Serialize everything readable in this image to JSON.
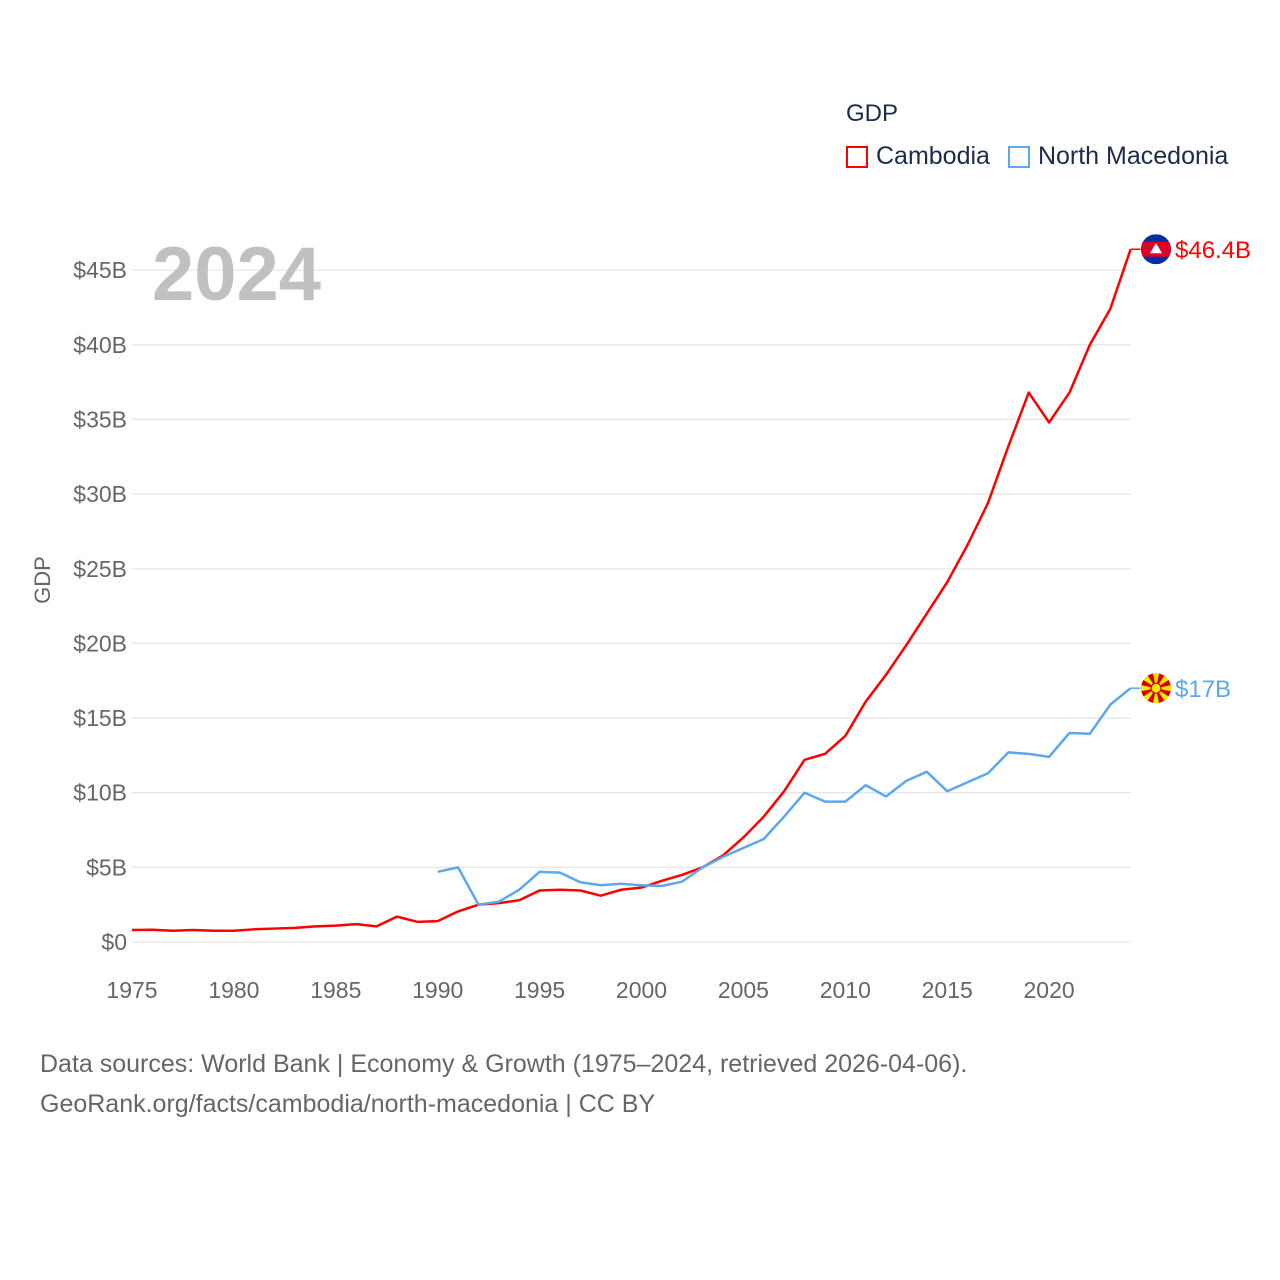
{
  "chart_data": {
    "type": "line",
    "title": "",
    "legend_title": "GDP",
    "legend_position": "top-right",
    "ylabel": "GDP",
    "xlabel": "",
    "xlim": [
      1975,
      2024
    ],
    "ylim": [
      0,
      47
    ],
    "x_ticks": [
      1975,
      1980,
      1985,
      1990,
      1995,
      2000,
      2005,
      2010,
      2015,
      2020
    ],
    "y_ticks": [
      0,
      5,
      10,
      15,
      20,
      25,
      30,
      35,
      40,
      45
    ],
    "y_tick_labels": [
      "$0",
      "$5B",
      "$10B",
      "$15B",
      "$20B",
      "$25B",
      "$30B",
      "$35B",
      "$40B",
      "$45B"
    ],
    "grid": true,
    "year_watermark": "2024",
    "series": [
      {
        "name": "Cambodia",
        "color": "#ff0000",
        "end_label": "$46.4B",
        "flag": "cambodia-flag",
        "x": [
          1975,
          1976,
          1977,
          1978,
          1979,
          1980,
          1981,
          1982,
          1983,
          1984,
          1985,
          1986,
          1987,
          1988,
          1989,
          1990,
          1991,
          1992,
          1993,
          1994,
          1995,
          1996,
          1997,
          1998,
          1999,
          2000,
          2001,
          2002,
          2003,
          2004,
          2005,
          2006,
          2007,
          2008,
          2009,
          2010,
          2011,
          2012,
          2013,
          2014,
          2015,
          2016,
          2017,
          2018,
          2019,
          2020,
          2021,
          2022,
          2023,
          2024
        ],
        "values": [
          0.8,
          0.82,
          0.75,
          0.8,
          0.75,
          0.75,
          0.85,
          0.9,
          0.95,
          1.05,
          1.1,
          1.2,
          1.05,
          1.7,
          1.35,
          1.4,
          2.05,
          2.5,
          2.6,
          2.8,
          3.45,
          3.5,
          3.45,
          3.1,
          3.5,
          3.65,
          4.1,
          4.5,
          5.0,
          5.8,
          7.0,
          8.4,
          10.1,
          12.2,
          12.6,
          13.8,
          16.1,
          17.9,
          19.9,
          22.0,
          24.1,
          26.6,
          29.4,
          33.2,
          36.8,
          34.8,
          36.8,
          40.0,
          42.4,
          46.4
        ]
      },
      {
        "name": "North Macedonia",
        "color": "#5ca8ee",
        "end_label": "$17B",
        "flag": "north-macedonia-flag",
        "x": [
          1990,
          1991,
          1992,
          1993,
          1994,
          1995,
          1996,
          1997,
          1998,
          1999,
          2000,
          2001,
          2002,
          2003,
          2004,
          2005,
          2006,
          2007,
          2008,
          2009,
          2010,
          2011,
          2012,
          2013,
          2014,
          2015,
          2016,
          2017,
          2018,
          2019,
          2020,
          2021,
          2022,
          2023,
          2024
        ],
        "values": [
          4.7,
          5.0,
          2.5,
          2.7,
          3.5,
          4.7,
          4.65,
          4.0,
          3.8,
          3.9,
          3.8,
          3.75,
          4.05,
          5.0,
          5.7,
          6.3,
          6.9,
          8.4,
          10.0,
          9.4,
          9.4,
          10.5,
          9.75,
          10.8,
          11.4,
          10.1,
          10.7,
          11.3,
          12.7,
          12.6,
          12.4,
          14.0,
          13.95,
          15.9,
          17.0
        ]
      }
    ]
  },
  "footer": {
    "line1": "Data sources: World Bank | Economy & Growth (1975–2024, retrieved 2026-04-06).",
    "line2": "GeoRank.org/facts/cambodia/north-macedonia | CC BY"
  }
}
